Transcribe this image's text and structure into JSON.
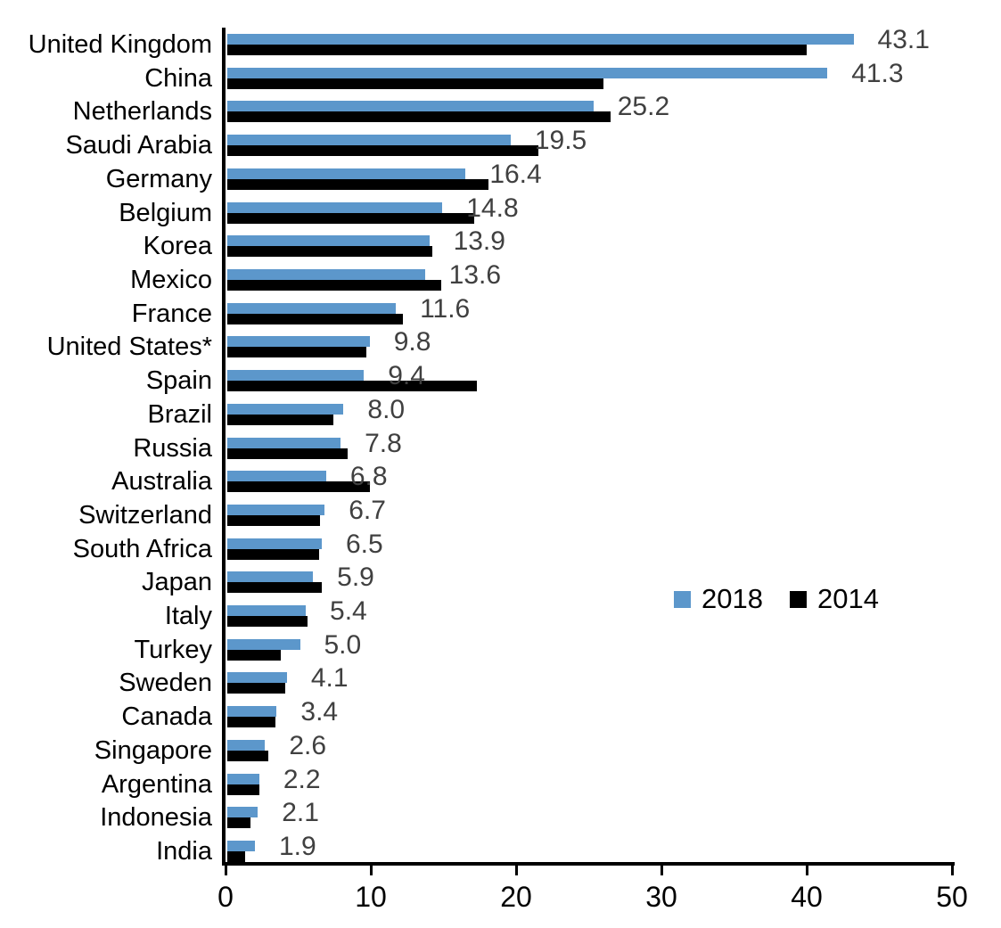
{
  "chart_data": {
    "type": "bar",
    "orientation": "horizontal",
    "title": "",
    "xlabel": "",
    "ylabel": "",
    "xlim": [
      0,
      50
    ],
    "xticks": [
      0,
      10,
      20,
      30,
      40,
      50
    ],
    "grid": false,
    "legend_position": "middle-right",
    "value_labels_shown_for": "2018",
    "categories": [
      "United Kingdom",
      "China",
      "Netherlands",
      "Saudi Arabia",
      "Germany",
      "Belgium",
      "Korea",
      "Mexico",
      "France",
      "United States*",
      "Spain",
      "Brazil",
      "Russia",
      "Australia",
      "Switzerland",
      "South Africa",
      "Japan",
      "Italy",
      "Turkey",
      "Sweden",
      "Canada",
      "Singapore",
      "Argentina",
      "Indonesia",
      "India"
    ],
    "series": [
      {
        "name": "2018",
        "color": "#5C97CB",
        "values": [
          43.1,
          41.3,
          25.2,
          19.5,
          16.4,
          14.8,
          13.9,
          13.6,
          11.6,
          9.8,
          9.4,
          8.0,
          7.8,
          6.8,
          6.7,
          6.5,
          5.9,
          5.4,
          5.0,
          4.1,
          3.4,
          2.6,
          2.2,
          2.1,
          1.9
        ],
        "value_labels": [
          "43.1",
          "41.3",
          "25.2",
          "19.5",
          "16.4",
          "14.8",
          "13.9",
          "13.6",
          "11.6",
          "9.8",
          "9.4",
          "8.0",
          "7.8",
          "6.8",
          "6.7",
          "6.5",
          "5.9",
          "5.4",
          "5.0",
          "4.1",
          "3.4",
          "2.6",
          "2.2",
          "2.1",
          "1.9"
        ]
      },
      {
        "name": "2014",
        "color": "#000000",
        "values": [
          39.9,
          25.9,
          26.4,
          21.4,
          18.0,
          17.0,
          14.1,
          14.7,
          12.1,
          9.6,
          17.2,
          7.3,
          8.3,
          9.8,
          6.4,
          6.3,
          6.5,
          5.5,
          3.7,
          4.0,
          3.3,
          2.8,
          2.2,
          1.6,
          1.2
        ]
      }
    ],
    "value_label_color": "#404040",
    "axis_color": "#000000"
  }
}
